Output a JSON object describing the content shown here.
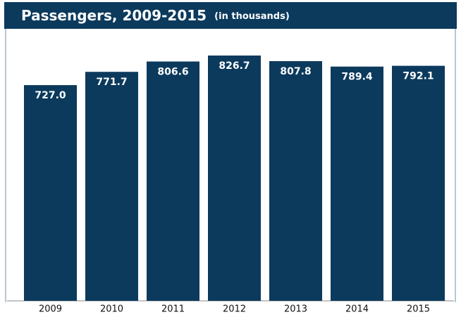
{
  "chart_data": {
    "type": "bar",
    "title": "Passengers, 2009-2015",
    "subtitle": "(in thousands)",
    "categories": [
      "2009",
      "2010",
      "2011",
      "2012",
      "2013",
      "2014",
      "2015"
    ],
    "values": [
      727.0,
      771.7,
      806.6,
      826.7,
      807.8,
      789.4,
      792.1
    ],
    "value_labels": [
      "727.0",
      "771.7",
      "806.6",
      "826.7",
      "807.8",
      "789.4",
      "792.1"
    ],
    "color": "#0b3a5d"
  }
}
